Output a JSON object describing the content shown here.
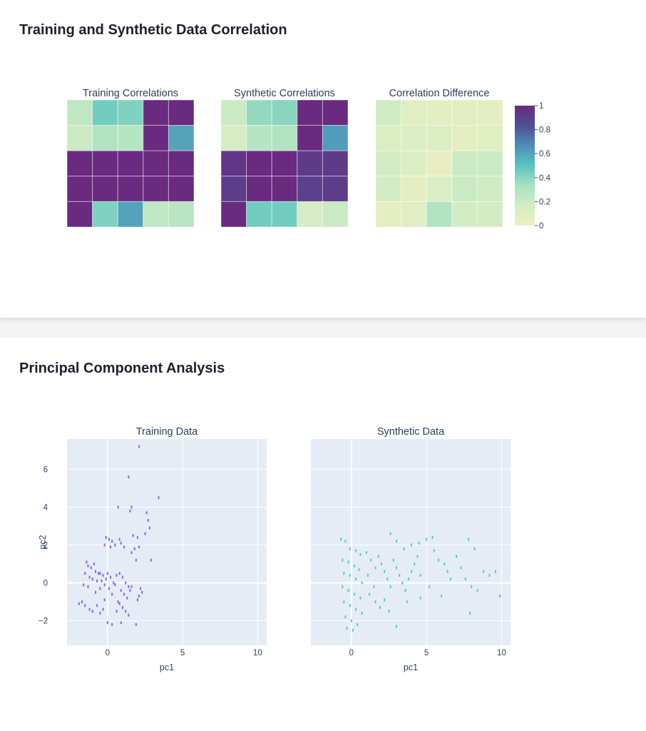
{
  "correlation_section": {
    "title": "Training and Synthetic Data Correlation"
  },
  "pca_section": {
    "title": "Principal Component Analysis"
  },
  "colors": {
    "colorscale": [
      "#edefc1",
      "#d2ecc4",
      "#a9e1c0",
      "#5ac4c0",
      "#4e8db8",
      "#4f4f97",
      "#6a2a7f"
    ],
    "training_points": "#8c63f0",
    "synthetic_points": "#4fd4a4",
    "plot_bg": "#e5ecf6"
  },
  "chart_data": [
    {
      "type": "heatmap",
      "title": "Training Correlations",
      "z": [
        [
          0.25,
          0.45,
          0.42,
          1.0,
          1.0
        ],
        [
          0.2,
          0.3,
          0.28,
          1.0,
          0.6
        ],
        [
          1.0,
          1.0,
          1.0,
          1.0,
          1.0
        ],
        [
          1.0,
          1.0,
          1.0,
          1.0,
          1.0
        ],
        [
          1.0,
          0.42,
          0.6,
          0.25,
          0.27
        ]
      ]
    },
    {
      "type": "heatmap",
      "title": "Synthetic Correlations",
      "z": [
        [
          0.2,
          0.38,
          0.4,
          1.0,
          1.0
        ],
        [
          0.15,
          0.28,
          0.3,
          1.0,
          0.62
        ],
        [
          0.95,
          1.0,
          1.0,
          0.93,
          0.93
        ],
        [
          0.92,
          1.0,
          1.0,
          0.9,
          0.92
        ],
        [
          1.0,
          0.45,
          0.45,
          0.15,
          0.2
        ]
      ]
    },
    {
      "type": "heatmap",
      "title": "Correlation Difference",
      "z": [
        [
          0.18,
          0.08,
          0.06,
          0.08,
          0.05
        ],
        [
          0.12,
          0.1,
          0.12,
          0.05,
          0.08
        ],
        [
          0.16,
          0.1,
          0.03,
          0.2,
          0.2
        ],
        [
          0.16,
          0.05,
          0.12,
          0.2,
          0.18
        ],
        [
          0.05,
          0.08,
          0.3,
          0.16,
          0.16
        ]
      ],
      "colorbar": {
        "range": [
          0,
          1
        ],
        "ticks": [
          "0",
          "0.2",
          "0.4",
          "0.6",
          "0.8",
          "1"
        ]
      }
    },
    {
      "type": "scatter",
      "title": "Training Data",
      "xlabel": "pc1",
      "ylabel": "pc2",
      "xlim": [
        -2.7,
        10.6
      ],
      "ylim": [
        -3.3,
        7.6
      ],
      "xticks": [
        "0",
        "5",
        "10"
      ],
      "yticks": [
        "−2",
        "0",
        "2",
        "4",
        "6"
      ],
      "points": [
        [
          2.1,
          7.2
        ],
        [
          1.4,
          5.6
        ],
        [
          3.4,
          4.5
        ],
        [
          0.7,
          4.0
        ],
        [
          1.6,
          4.0
        ],
        [
          1.5,
          3.8
        ],
        [
          2.6,
          3.7
        ],
        [
          2.7,
          3.3
        ],
        [
          2.8,
          2.9
        ],
        [
          2.5,
          2.6
        ],
        [
          1.7,
          2.5
        ],
        [
          2.0,
          2.4
        ],
        [
          1.8,
          1.8
        ],
        [
          2.1,
          1.9
        ],
        [
          1.6,
          1.6
        ],
        [
          1.9,
          1.2
        ],
        [
          2.9,
          1.2
        ],
        [
          -0.1,
          2.4
        ],
        [
          0.1,
          2.3
        ],
        [
          0.3,
          2.2
        ],
        [
          0.5,
          2.0
        ],
        [
          0.8,
          2.3
        ],
        [
          0.9,
          2.1
        ],
        [
          1.1,
          1.9
        ],
        [
          -0.2,
          2.0
        ],
        [
          0.2,
          1.9
        ],
        [
          -1.4,
          1.1
        ],
        [
          -1.3,
          0.9
        ],
        [
          -1.1,
          0.8
        ],
        [
          -0.9,
          1.0
        ],
        [
          -0.8,
          0.6
        ],
        [
          -0.6,
          0.5
        ],
        [
          -1.2,
          0.3
        ],
        [
          -1.0,
          0.2
        ],
        [
          -0.7,
          0.1
        ],
        [
          -1.5,
          0.5
        ],
        [
          -1.6,
          -0.1
        ],
        [
          -1.3,
          -0.2
        ],
        [
          -0.5,
          0.5
        ],
        [
          -0.3,
          0.4
        ],
        [
          -0.1,
          0.2
        ],
        [
          0.0,
          0.5
        ],
        [
          0.2,
          0.3
        ],
        [
          -0.4,
          0.1
        ],
        [
          -0.2,
          -0.1
        ],
        [
          0.1,
          -0.3
        ],
        [
          0.4,
          0.0
        ],
        [
          0.6,
          0.4
        ],
        [
          0.5,
          -0.1
        ],
        [
          -0.5,
          -0.3
        ],
        [
          0.8,
          0.5
        ],
        [
          1.0,
          0.3
        ],
        [
          1.2,
          0.0
        ],
        [
          1.4,
          -0.2
        ],
        [
          0.9,
          -0.4
        ],
        [
          1.1,
          -0.6
        ],
        [
          1.3,
          -0.8
        ],
        [
          1.5,
          -0.4
        ],
        [
          0.7,
          -1.0
        ],
        [
          1.6,
          -0.2
        ],
        [
          2.2,
          -0.3
        ],
        [
          2.3,
          -0.5
        ],
        [
          2.1,
          -0.7
        ],
        [
          2.0,
          -0.9
        ],
        [
          0.8,
          -1.1
        ],
        [
          1.0,
          -1.3
        ],
        [
          1.2,
          -1.5
        ],
        [
          0.6,
          -1.5
        ],
        [
          1.4,
          -1.7
        ],
        [
          -0.3,
          -1.4
        ],
        [
          -0.5,
          -1.6
        ],
        [
          -1.0,
          -1.5
        ],
        [
          -1.2,
          -1.4
        ],
        [
          -1.5,
          -1.2
        ],
        [
          -1.7,
          -1.0
        ],
        [
          -1.9,
          -1.1
        ],
        [
          0.0,
          -2.1
        ],
        [
          0.3,
          -2.2
        ],
        [
          0.9,
          -2.1
        ],
        [
          1.9,
          -2.2
        ],
        [
          -0.7,
          -1.2
        ],
        [
          -0.2,
          -0.9
        ],
        [
          -0.8,
          -0.5
        ],
        [
          0.3,
          -0.6
        ]
      ]
    },
    {
      "type": "scatter",
      "title": "Synthetic Data",
      "xlabel": "pc1",
      "xlim": [
        -2.7,
        10.6
      ],
      "ylim": [
        -3.3,
        7.6
      ],
      "xticks": [
        "0",
        "5",
        "10"
      ],
      "points": [
        [
          -0.7,
          2.3
        ],
        [
          -0.4,
          2.2
        ],
        [
          -0.1,
          1.8
        ],
        [
          0.3,
          1.7
        ],
        [
          0.6,
          1.5
        ],
        [
          -0.6,
          1.2
        ],
        [
          -0.2,
          1.1
        ],
        [
          0.2,
          0.9
        ],
        [
          0.5,
          0.7
        ],
        [
          -0.5,
          0.5
        ],
        [
          -0.1,
          0.4
        ],
        [
          0.3,
          0.2
        ],
        [
          0.7,
          0.0
        ],
        [
          -0.6,
          -0.2
        ],
        [
          -0.2,
          -0.4
        ],
        [
          0.2,
          -0.6
        ],
        [
          0.6,
          -0.8
        ],
        [
          -0.5,
          -1.0
        ],
        [
          -0.1,
          -1.2
        ],
        [
          0.3,
          -1.4
        ],
        [
          0.7,
          -1.6
        ],
        [
          -0.4,
          -1.8
        ],
        [
          0.0,
          -2.0
        ],
        [
          0.4,
          -2.2
        ],
        [
          -0.3,
          -2.4
        ],
        [
          0.1,
          -2.5
        ],
        [
          1.0,
          1.6
        ],
        [
          1.3,
          1.2
        ],
        [
          1.6,
          0.8
        ],
        [
          1.1,
          0.4
        ],
        [
          1.5,
          -0.2
        ],
        [
          1.2,
          -0.6
        ],
        [
          1.8,
          1.4
        ],
        [
          2.0,
          1.0
        ],
        [
          2.2,
          0.6
        ],
        [
          2.4,
          0.2
        ],
        [
          2.6,
          -0.2
        ],
        [
          2.8,
          1.2
        ],
        [
          3.0,
          0.8
        ],
        [
          3.2,
          0.4
        ],
        [
          3.4,
          0.0
        ],
        [
          3.6,
          -0.4
        ],
        [
          3.8,
          0.2
        ],
        [
          4.0,
          0.6
        ],
        [
          4.2,
          1.0
        ],
        [
          4.4,
          1.4
        ],
        [
          4.6,
          0.4
        ],
        [
          3.0,
          2.2
        ],
        [
          3.5,
          1.8
        ],
        [
          4.0,
          2.0
        ],
        [
          4.5,
          2.1
        ],
        [
          2.6,
          2.6
        ],
        [
          5.0,
          2.3
        ],
        [
          5.4,
          2.4
        ],
        [
          5.8,
          1.2
        ],
        [
          6.2,
          1.0
        ],
        [
          6.4,
          0.6
        ],
        [
          6.6,
          0.2
        ],
        [
          7.0,
          1.4
        ],
        [
          7.3,
          0.8
        ],
        [
          7.8,
          2.3
        ],
        [
          8.2,
          1.8
        ],
        [
          7.6,
          0.2
        ],
        [
          8.0,
          -0.2
        ],
        [
          8.4,
          -0.4
        ],
        [
          8.8,
          0.6
        ],
        [
          9.2,
          0.4
        ],
        [
          9.6,
          0.6
        ],
        [
          9.9,
          -0.7
        ],
        [
          7.9,
          -1.6
        ],
        [
          3.0,
          -2.3
        ],
        [
          2.5,
          -1.5
        ],
        [
          1.6,
          -1.0
        ],
        [
          1.9,
          -1.3
        ],
        [
          4.6,
          -0.8
        ],
        [
          5.2,
          -0.2
        ],
        [
          6.0,
          -0.7
        ],
        [
          2.2,
          -0.9
        ],
        [
          3.7,
          -1.0
        ],
        [
          5.5,
          1.7
        ]
      ]
    }
  ]
}
